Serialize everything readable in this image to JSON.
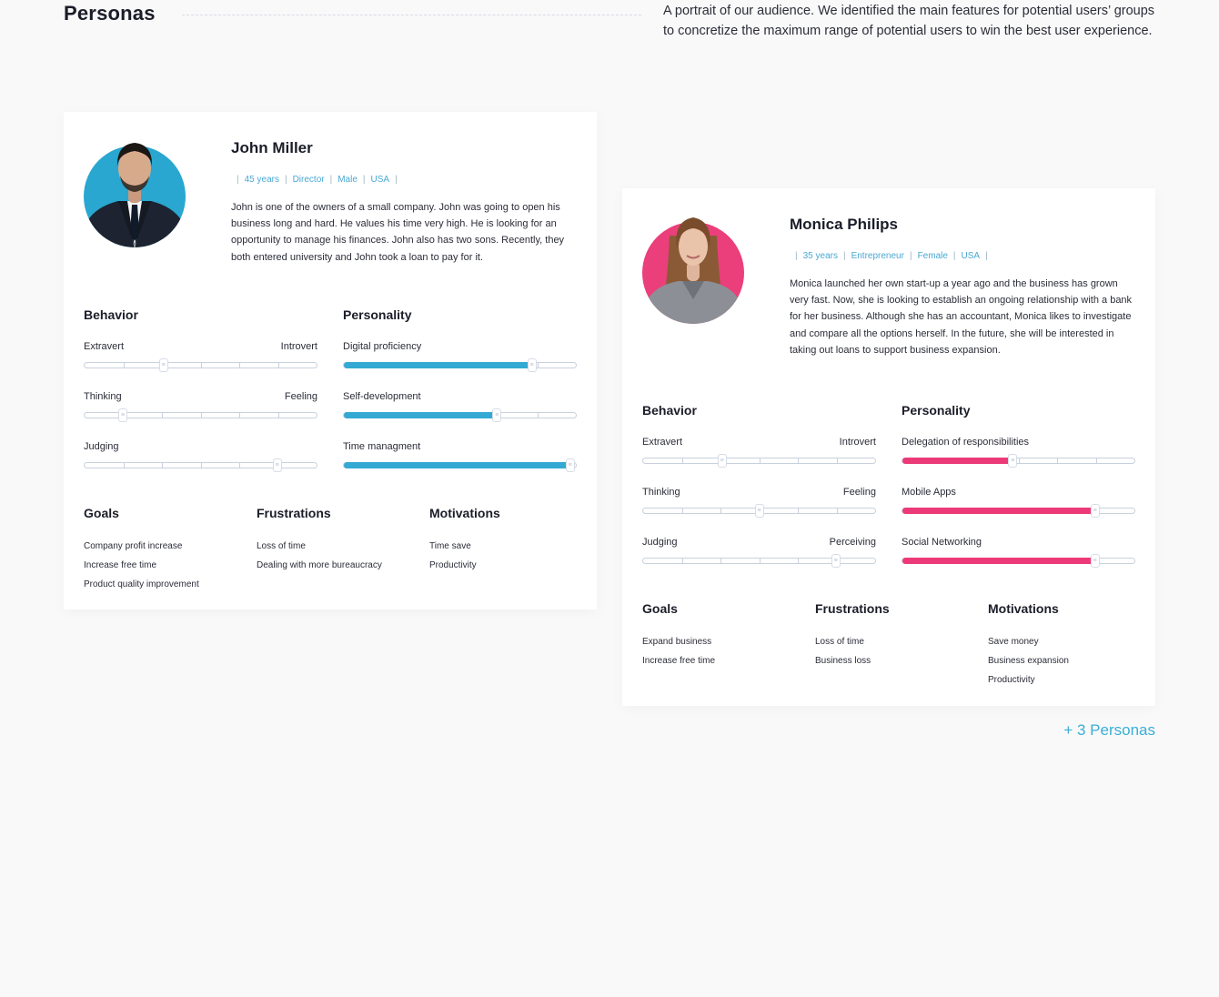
{
  "header": {
    "title": "Personas",
    "intro": "A portrait of our audience. We identified the main features for potential users’ groups to concretize the maximum range of potential users to win the best user experience."
  },
  "colors": {
    "john_accent": "#33a9d3",
    "monica_accent": "#ec3a78",
    "link": "#3aaed6"
  },
  "personas": [
    {
      "name": "John Miller",
      "meta": [
        "45 years",
        "Director",
        "Male",
        "USA"
      ],
      "description": "John is one of the owners of a small company. John was going to open his business long and hard. He values his time very high. He is looking for an opportunity to manage his finances. John also has two sons. Recently, they both entered university and John took a loan to pay for it.",
      "behavior_title": "Behavior",
      "behavior": [
        {
          "left": "Extravert",
          "right": "Introvert",
          "value": 0.34
        },
        {
          "left": "Thinking",
          "right": "Feeling",
          "value": 0.165
        },
        {
          "left": "Judging",
          "right": "",
          "value": 0.83
        }
      ],
      "personality_title": "Personality",
      "personality": [
        {
          "label": "Digital proficiency",
          "value": 0.81
        },
        {
          "label": "Self-development",
          "value": 0.66
        },
        {
          "label": "Time managment",
          "value": 0.975
        }
      ],
      "goals_title": "Goals",
      "goals": [
        "Company profit increase",
        "Increase free time",
        "Product quality improvement"
      ],
      "frustrations_title": "Frustrations",
      "frustrations": [
        "Loss of time",
        "Dealing with more bureaucracy"
      ],
      "motivations_title": "Motivations",
      "motivations": [
        "Time save",
        "Productivity"
      ]
    },
    {
      "name": "Monica Philips",
      "meta": [
        "35 years",
        "Entrepreneur",
        "Female",
        "USA"
      ],
      "description": "Monica launched her own start-up a year ago and the business has grown very fast. Now, she is looking to establish an ongoing relationship with a bank for her business. Although she has an accountant, Monica likes to investigate and compare all the options herself. In the future, she will be interested in taking out loans to support business expansion.",
      "behavior_title": "Behavior",
      "behavior": [
        {
          "left": "Extravert",
          "right": "Introvert",
          "value": 0.34
        },
        {
          "left": "Thinking",
          "right": "Feeling",
          "value": 0.5
        },
        {
          "left": "Judging",
          "right": "Perceiving",
          "value": 0.83
        }
      ],
      "personality_title": "Personality",
      "personality": [
        {
          "label": "Delegation of responsibilities",
          "value": 0.475
        },
        {
          "label": "Mobile Apps",
          "value": 0.83
        },
        {
          "label": "Social Networking",
          "value": 0.83
        }
      ],
      "goals_title": "Goals",
      "goals": [
        "Expand business",
        "Increase free time"
      ],
      "frustrations_title": "Frustrations",
      "frustrations": [
        "Loss of time",
        "Business loss"
      ],
      "motivations_title": "Motivations",
      "motivations": [
        "Save money",
        "Business expansion",
        "Productivity"
      ]
    }
  ],
  "more_link": "+ 3 Personas"
}
